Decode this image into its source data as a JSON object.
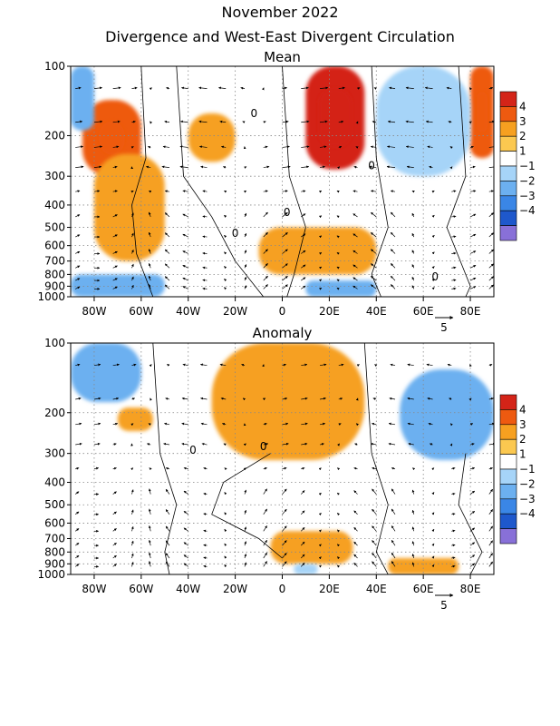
{
  "title_line1": "November 2022",
  "title_line2": "Divergence and West-East Divergent Circulation",
  "chart_data": [
    {
      "type": "heatmap",
      "title": "Mean",
      "x_ticks": [
        "80W",
        "60W",
        "40W",
        "20W",
        "0",
        "20E",
        "40E",
        "60E",
        "80E"
      ],
      "x_values": [
        -80,
        -60,
        -40,
        -20,
        0,
        20,
        40,
        60,
        80
      ],
      "xlim": [
        -90,
        90
      ],
      "y_ticks": [
        "100",
        "200",
        "300",
        "400",
        "500",
        "600",
        "700",
        "800",
        "900",
        "1000"
      ],
      "y_values": [
        100,
        200,
        300,
        400,
        500,
        600,
        700,
        800,
        900,
        1000
      ],
      "ylim": [
        1000,
        100
      ],
      "y_scale": "log",
      "contour_labels": [
        "0",
        "0",
        "0",
        "0",
        "0"
      ],
      "vector_reference": "5",
      "colorbar": {
        "labels": [
          "4",
          "3",
          "2",
          "1",
          "−1",
          "−2",
          "−3",
          "−4"
        ],
        "colors": [
          "#d42418",
          "#ee5a10",
          "#f6a020",
          "#fbc850",
          "#ffffff",
          "#a6d4f8",
          "#6cb0f0",
          "#3a86e6",
          "#1e58cc",
          "#8870d8"
        ]
      },
      "positive_regions": [
        {
          "x": [
            -85,
            -60
          ],
          "p": [
            140,
            300
          ],
          "level": 3
        },
        {
          "x": [
            -80,
            -50
          ],
          "p": [
            240,
            700
          ],
          "level": 2
        },
        {
          "x": [
            -40,
            -20
          ],
          "p": [
            160,
            260
          ],
          "level": 2
        },
        {
          "x": [
            10,
            35
          ],
          "p": [
            100,
            280
          ],
          "level": 4
        },
        {
          "x": [
            -10,
            40
          ],
          "p": [
            500,
            800
          ],
          "level": 2
        },
        {
          "x": [
            80,
            90
          ],
          "p": [
            100,
            250
          ],
          "level": 3
        }
      ],
      "negative_regions": [
        {
          "x": [
            -90,
            -80
          ],
          "p": [
            100,
            190
          ],
          "level": -2
        },
        {
          "x": [
            -90,
            -50
          ],
          "p": [
            800,
            1000
          ],
          "level": -2
        },
        {
          "x": [
            40,
            80
          ],
          "p": [
            100,
            300
          ],
          "level": -1
        },
        {
          "x": [
            10,
            40
          ],
          "p": [
            850,
            1000
          ],
          "level": -2
        }
      ]
    },
    {
      "type": "heatmap",
      "title": "Anomaly",
      "x_ticks": [
        "80W",
        "60W",
        "40W",
        "20W",
        "0",
        "20E",
        "40E",
        "60E",
        "80E"
      ],
      "x_values": [
        -80,
        -60,
        -40,
        -20,
        0,
        20,
        40,
        60,
        80
      ],
      "xlim": [
        -90,
        90
      ],
      "y_ticks": [
        "100",
        "200",
        "300",
        "400",
        "500",
        "600",
        "700",
        "800",
        "900",
        "1000"
      ],
      "y_values": [
        100,
        200,
        300,
        400,
        500,
        600,
        700,
        800,
        900,
        1000
      ],
      "ylim": [
        1000,
        100
      ],
      "y_scale": "log",
      "contour_labels": [
        "0",
        "0"
      ],
      "vector_reference": "5",
      "colorbar": {
        "labels": [
          "4",
          "3",
          "2",
          "1",
          "−1",
          "−2",
          "−3",
          "−4"
        ],
        "colors": [
          "#d42418",
          "#ee5a10",
          "#f6a020",
          "#fbc850",
          "#ffffff",
          "#a6d4f8",
          "#6cb0f0",
          "#3a86e6",
          "#1e58cc",
          "#8870d8"
        ]
      },
      "positive_regions": [
        {
          "x": [
            -30,
            35
          ],
          "p": [
            100,
            320
          ],
          "level": 2
        },
        {
          "x": [
            -70,
            -55
          ],
          "p": [
            190,
            240
          ],
          "level": 2
        },
        {
          "x": [
            -5,
            30
          ],
          "p": [
            650,
            900
          ],
          "level": 2
        },
        {
          "x": [
            45,
            75
          ],
          "p": [
            850,
            1000
          ],
          "level": 2
        }
      ],
      "negative_regions": [
        {
          "x": [
            -90,
            -60
          ],
          "p": [
            100,
            180
          ],
          "level": -2
        },
        {
          "x": [
            50,
            90
          ],
          "p": [
            130,
            320
          ],
          "level": -2
        },
        {
          "x": [
            5,
            15
          ],
          "p": [
            900,
            1000
          ],
          "level": -1
        }
      ]
    }
  ]
}
